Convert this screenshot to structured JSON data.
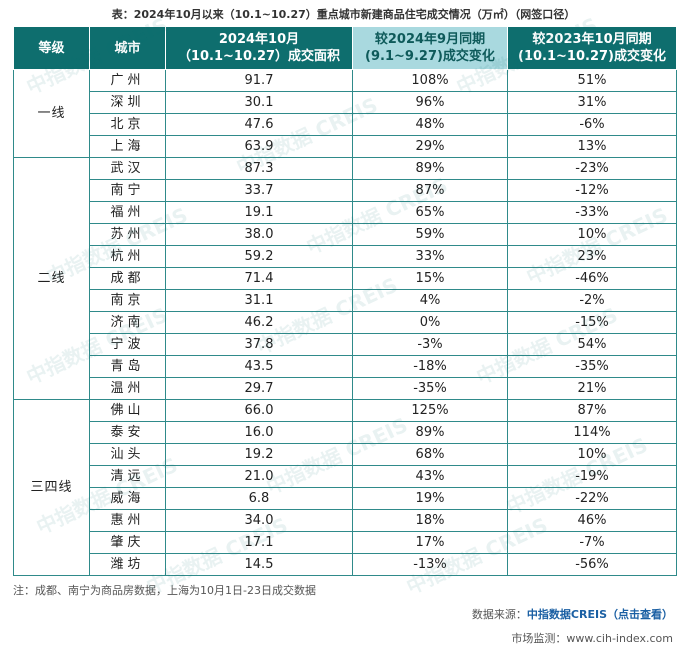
{
  "title": "表：2024年10月以来（10.1~10.27）重点城市新建商品住宅成交情况（万㎡）（网签口径）",
  "headers": {
    "tier": "等级",
    "city": "城市",
    "area_line1": "2024年10月",
    "area_line2": "（10.1~10.27）成交面积",
    "mom_line1": "较2024年9月同期",
    "mom_line2": "(9.1~9.27)成交变化",
    "yoy_line1": "较2023年10月同期",
    "yoy_line2": "(10.1~10.27)成交变化"
  },
  "groups": [
    {
      "tier": "一线",
      "rows": [
        {
          "city": "广州",
          "area": "91.7",
          "mom": "108%",
          "yoy": "51%"
        },
        {
          "city": "深圳",
          "area": "30.1",
          "mom": "96%",
          "yoy": "31%"
        },
        {
          "city": "北京",
          "area": "47.6",
          "mom": "48%",
          "yoy": "-6%"
        },
        {
          "city": "上海",
          "area": "63.9",
          "mom": "29%",
          "yoy": "13%"
        }
      ]
    },
    {
      "tier": "二线",
      "rows": [
        {
          "city": "武汉",
          "area": "87.3",
          "mom": "89%",
          "yoy": "-23%"
        },
        {
          "city": "南宁",
          "area": "33.7",
          "mom": "87%",
          "yoy": "-12%"
        },
        {
          "city": "福州",
          "area": "19.1",
          "mom": "65%",
          "yoy": "-33%"
        },
        {
          "city": "苏州",
          "area": "38.0",
          "mom": "59%",
          "yoy": "10%"
        },
        {
          "city": "杭州",
          "area": "59.2",
          "mom": "33%",
          "yoy": "23%"
        },
        {
          "city": "成都",
          "area": "71.4",
          "mom": "15%",
          "yoy": "-46%"
        },
        {
          "city": "南京",
          "area": "31.1",
          "mom": "4%",
          "yoy": "-2%"
        },
        {
          "city": "济南",
          "area": "46.2",
          "mom": "0%",
          "yoy": "-15%"
        },
        {
          "city": "宁波",
          "area": "37.8",
          "mom": "-3%",
          "yoy": "54%"
        },
        {
          "city": "青岛",
          "area": "43.5",
          "mom": "-18%",
          "yoy": "-35%"
        },
        {
          "city": "温州",
          "area": "29.7",
          "mom": "-35%",
          "yoy": "21%"
        }
      ]
    },
    {
      "tier": "三四线",
      "rows": [
        {
          "city": "佛山",
          "area": "66.0",
          "mom": "125%",
          "yoy": "87%"
        },
        {
          "city": "泰安",
          "area": "16.0",
          "mom": "89%",
          "yoy": "114%"
        },
        {
          "city": "汕头",
          "area": "19.2",
          "mom": "68%",
          "yoy": "10%"
        },
        {
          "city": "清远",
          "area": "21.0",
          "mom": "43%",
          "yoy": "-19%"
        },
        {
          "city": "威海",
          "area": "6.8",
          "mom": "19%",
          "yoy": "-22%"
        },
        {
          "city": "惠州",
          "area": "34.0",
          "mom": "18%",
          "yoy": "46%"
        },
        {
          "city": "肇庆",
          "area": "17.1",
          "mom": "17%",
          "yoy": "-7%"
        },
        {
          "city": "潍坊",
          "area": "14.5",
          "mom": "-13%",
          "yoy": "-56%"
        }
      ]
    }
  ],
  "note": "注：成都、南宁为商品房数据，上海为10月1日-23日成交数据",
  "source_label": "数据来源：",
  "source_brand": "中指数据CREIS（点击查看）",
  "monitor": "市场监测：www.cih-index.com",
  "watermark": "中指数据 CREIS",
  "colors": {
    "header_bg": "#0e6e6e",
    "header_highlight": "#a9d9df",
    "border": "#2f8a8a"
  }
}
